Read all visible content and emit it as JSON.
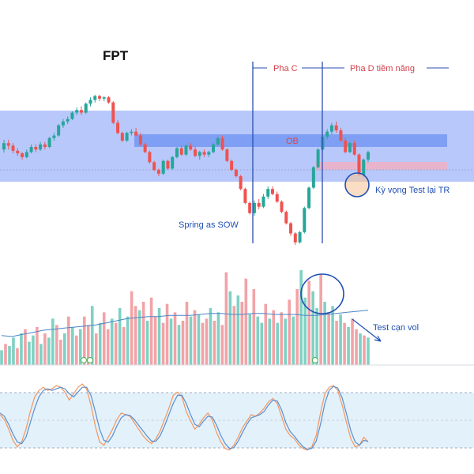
{
  "chart_data": [
    {
      "type": "candlestick",
      "title": "FPT",
      "colors": {
        "up": "#26a69a",
        "down": "#ef5350"
      },
      "candles": [
        [
          30,
          31.5,
          29.5,
          31
        ],
        [
          31,
          31.5,
          30,
          30.6
        ],
        [
          30.6,
          31,
          29.4,
          29.8
        ],
        [
          29.8,
          30.2,
          29,
          29.4
        ],
        [
          29.4,
          29.6,
          28.4,
          28.8
        ],
        [
          28.8,
          30,
          28.6,
          29.6
        ],
        [
          29.6,
          30.8,
          29.4,
          30.4
        ],
        [
          30.4,
          30.8,
          29.6,
          30
        ],
        [
          30,
          31.2,
          29.8,
          30.8
        ],
        [
          30.8,
          31.2,
          30,
          30.4
        ],
        [
          30.4,
          32,
          30.2,
          31.8
        ],
        [
          31.8,
          32.6,
          31.4,
          32.2
        ],
        [
          32.2,
          34,
          32,
          33.8
        ],
        [
          33.8,
          34.8,
          33.4,
          34.4
        ],
        [
          34.4,
          35.2,
          34,
          34.8
        ],
        [
          34.8,
          36,
          34.6,
          35.8
        ],
        [
          35.8,
          36.6,
          35.4,
          36.2
        ],
        [
          36.2,
          36.8,
          35.4,
          35.8
        ],
        [
          35.8,
          37.4,
          35.6,
          37.2
        ],
        [
          37.2,
          38.2,
          36.8,
          37.8
        ],
        [
          37.8,
          38.6,
          37.4,
          38.4
        ],
        [
          38.4,
          38.6,
          37.6,
          38
        ],
        [
          38,
          38.4,
          37.6,
          38.2
        ],
        [
          38.2,
          38.4,
          37.2,
          37.4
        ],
        [
          37.4,
          37.6,
          34,
          34.2
        ],
        [
          34.2,
          34.6,
          32.4,
          32.6
        ],
        [
          32.6,
          32.8,
          31.2,
          31.4
        ],
        [
          31.4,
          32.8,
          31.2,
          32.6
        ],
        [
          32.6,
          33.2,
          32.2,
          32.8
        ],
        [
          32.8,
          33.4,
          32,
          32.2
        ],
        [
          32.2,
          32.6,
          30.6,
          30.8
        ],
        [
          30.8,
          31,
          29.4,
          29.6
        ],
        [
          29.6,
          29.8,
          27.8,
          28
        ],
        [
          28,
          28.2,
          26.6,
          26.8
        ],
        [
          26.8,
          27,
          25.8,
          26.2
        ],
        [
          26.2,
          28.4,
          26,
          28.2
        ],
        [
          28.2,
          28.4,
          26.8,
          27
        ],
        [
          27,
          29,
          26.8,
          28.8
        ],
        [
          28.8,
          30.4,
          28.6,
          30.2
        ],
        [
          30.2,
          30.6,
          29,
          29.2
        ],
        [
          29.2,
          30.8,
          29,
          30.6
        ],
        [
          30.6,
          31,
          29.8,
          30
        ],
        [
          30,
          30.4,
          28.8,
          29
        ],
        [
          29,
          29.8,
          28.4,
          29.6
        ],
        [
          29.6,
          30,
          28.8,
          29.2
        ],
        [
          29.2,
          29.8,
          28.8,
          29.6
        ],
        [
          29.6,
          31,
          29.4,
          30.8
        ],
        [
          30.8,
          32,
          30.6,
          31.8
        ],
        [
          31.8,
          32.2,
          29.8,
          30
        ],
        [
          30,
          30.2,
          28,
          28.2
        ],
        [
          28.2,
          28.4,
          26.6,
          26.8
        ],
        [
          26.8,
          27,
          25.6,
          25.8
        ],
        [
          25.8,
          26,
          23.6,
          23.8
        ],
        [
          23.8,
          24,
          21.4,
          21.6
        ],
        [
          21.6,
          21.8,
          19.8,
          20
        ],
        [
          20,
          22,
          19.6,
          21.6
        ],
        [
          21.6,
          22.2,
          20.6,
          21
        ],
        [
          21,
          23,
          20.8,
          22.6
        ],
        [
          22.6,
          24.2,
          22.2,
          23.8
        ],
        [
          23.8,
          24.2,
          22.8,
          23
        ],
        [
          23,
          23.4,
          21.6,
          21.8
        ],
        [
          21.8,
          22,
          20,
          20.2
        ],
        [
          20.2,
          20.4,
          18.2,
          18.4
        ],
        [
          18.4,
          18.6,
          16.4,
          16.8
        ],
        [
          16.8,
          17,
          15,
          15.4
        ],
        [
          15.4,
          17.2,
          15.2,
          17
        ],
        [
          17,
          21,
          16.8,
          20.8
        ],
        [
          20.8,
          24.2,
          20.6,
          24
        ],
        [
          24,
          27.4,
          23.8,
          27.2
        ],
        [
          27.2,
          30.2,
          27,
          30
        ],
        [
          30,
          32.2,
          29.8,
          32
        ],
        [
          32,
          33.2,
          31.6,
          32.8
        ],
        [
          32.8,
          34.2,
          32.4,
          33.8
        ],
        [
          33.8,
          34.4,
          32.6,
          33
        ],
        [
          33,
          33.4,
          31.2,
          31.4
        ],
        [
          31.4,
          31.8,
          29.4,
          29.6
        ],
        [
          29.6,
          31.2,
          29.4,
          31
        ],
        [
          31,
          31.4,
          29,
          29.2
        ],
        [
          29.2,
          29.4,
          25.8,
          26
        ],
        [
          26,
          28.6,
          25.6,
          28.4
        ],
        [
          28.4,
          29.8,
          28,
          29.6
        ]
      ],
      "annotations": {
        "phase_c": "Pha C",
        "phase_d": "Pha D tiềm năng",
        "ob": "OB",
        "spring": "Spring as SOW",
        "expect": "Kỳ vọng Test lại TR"
      }
    },
    {
      "type": "bar",
      "title": "",
      "values": [
        14,
        20,
        18,
        26,
        16,
        30,
        34,
        22,
        28,
        36,
        20,
        30,
        26,
        44,
        38,
        24,
        30,
        46,
        36,
        28,
        34,
        46,
        38,
        56,
        30,
        40,
        50,
        34,
        44,
        40,
        54,
        36,
        46,
        70,
        56,
        52,
        60,
        42,
        64,
        46,
        54,
        40,
        58,
        44,
        50,
        38,
        42,
        60,
        46,
        52,
        48,
        40,
        44,
        54,
        42,
        50,
        38,
        88,
        70,
        56,
        66,
        60,
        82,
        48,
        72,
        46,
        40,
        58,
        44,
        52,
        40,
        50,
        44,
        62,
        46,
        72,
        90,
        64,
        80,
        70,
        54,
        86,
        60,
        50,
        56,
        42,
        48,
        40,
        36,
        44,
        34,
        30,
        28,
        26
      ],
      "directions": [
        "u",
        "d",
        "u",
        "u",
        "d",
        "u",
        "d",
        "u",
        "u",
        "d",
        "u",
        "d",
        "u",
        "u",
        "d",
        "d",
        "u",
        "d",
        "u",
        "d",
        "u",
        "d",
        "d",
        "u",
        "d",
        "u",
        "d",
        "d",
        "u",
        "d",
        "u",
        "d",
        "u",
        "d",
        "d",
        "u",
        "d",
        "u",
        "d",
        "d",
        "u",
        "d",
        "d",
        "u",
        "d",
        "u",
        "d",
        "d",
        "u",
        "d",
        "u",
        "d",
        "d",
        "u",
        "d",
        "u",
        "d",
        "d",
        "u",
        "d",
        "u",
        "d",
        "d",
        "u",
        "d",
        "u",
        "u",
        "d",
        "u",
        "d",
        "u",
        "d",
        "u",
        "d",
        "u",
        "d",
        "u",
        "u",
        "d",
        "u",
        "u",
        "d",
        "u",
        "d",
        "u",
        "d",
        "u",
        "d",
        "u",
        "d",
        "d",
        "u",
        "d",
        "u"
      ],
      "ma": [
        28,
        27,
        29,
        31,
        33,
        34,
        35,
        36,
        37,
        38,
        40,
        42,
        44,
        45,
        46,
        46,
        47,
        47,
        47,
        48,
        49,
        49,
        48,
        48,
        49,
        49,
        48,
        48,
        48,
        47,
        47,
        48,
        49,
        50,
        51,
        52
      ],
      "colors": {
        "up": "#7fd1c3",
        "down": "#f2a3a7",
        "ma": "#4a86c5"
      },
      "annotation": "Test cạn vol"
    },
    {
      "type": "line",
      "title": "",
      "ylim": [
        0,
        100
      ],
      "series": [
        {
          "values": [
            58,
            52,
            40,
            26,
            18,
            24,
            40,
            62,
            80,
            88,
            92,
            88,
            90,
            94,
            92,
            86,
            76,
            84,
            92,
            96,
            90,
            70,
            44,
            24,
            20,
            30,
            40,
            52,
            60,
            58,
            56,
            48,
            40,
            32,
            26,
            22,
            28,
            38,
            52,
            66,
            82,
            86,
            80,
            62,
            50,
            40,
            46,
            54,
            60,
            52,
            36,
            24,
            16,
            14,
            20,
            30,
            42,
            50,
            58,
            56,
            60,
            66,
            74,
            78,
            72,
            56,
            40,
            32,
            28,
            20,
            16,
            14,
            18,
            32,
            60,
            84,
            92,
            94,
            88,
            70,
            48,
            28,
            18,
            20,
            30,
            24
          ]
        },
        {
          "values": [
            60,
            56,
            46,
            34,
            24,
            22,
            30,
            48,
            66,
            80,
            88,
            90,
            88,
            90,
            92,
            90,
            84,
            80,
            86,
            92,
            92,
            82,
            62,
            40,
            26,
            24,
            32,
            44,
            54,
            58,
            57,
            52,
            45,
            38,
            31,
            25,
            25,
            32,
            44,
            58,
            72,
            82,
            82,
            72,
            58,
            46,
            43,
            50,
            56,
            55,
            45,
            32,
            22,
            16,
            17,
            25,
            36,
            46,
            54,
            56,
            58,
            62,
            70,
            76,
            75,
            64,
            48,
            37,
            31,
            24,
            18,
            15,
            16,
            25,
            46,
            72,
            88,
            93,
            91,
            79,
            59,
            38,
            24,
            20,
            26,
            25
          ]
        }
      ],
      "colors": [
        "#f4975e",
        "#5a8fd0"
      ],
      "band": [
        20,
        80
      ]
    }
  ]
}
